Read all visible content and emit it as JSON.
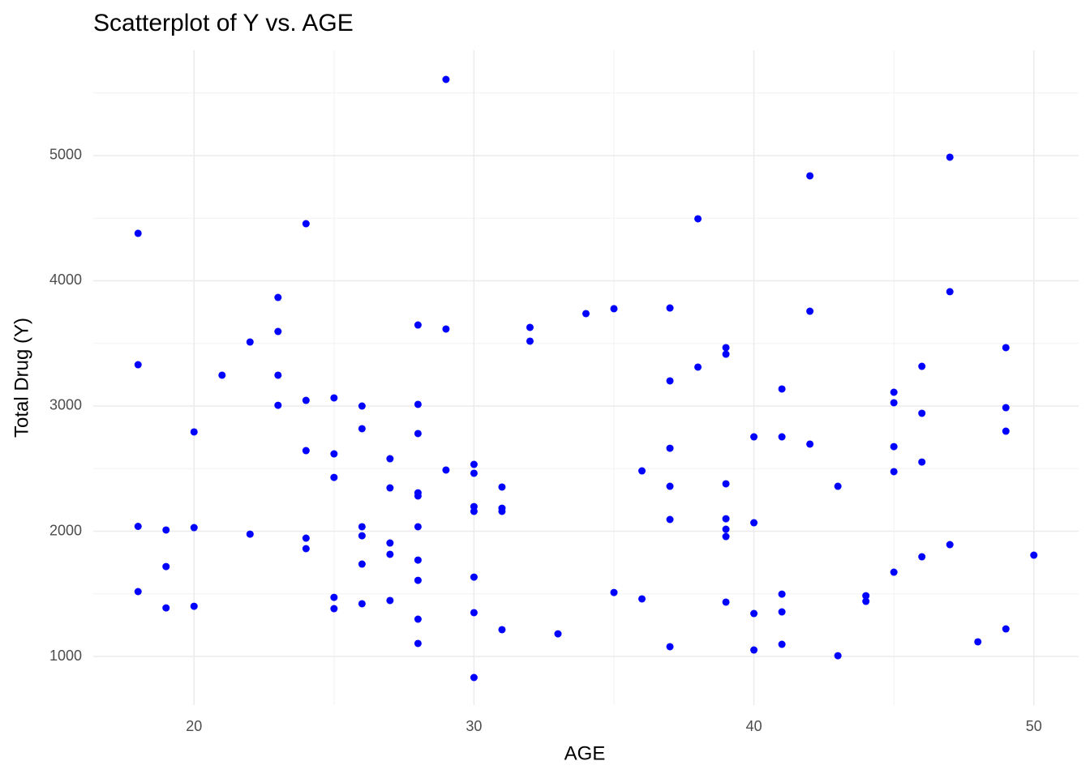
{
  "chart_data": {
    "type": "scatter",
    "title": "Scatterplot of Y vs. AGE",
    "x_label": "AGE",
    "y_label": "Total Drug (Y)",
    "color": "#0000ff",
    "grid": true,
    "xlim": [
      16.4,
      51.6
    ],
    "ylim": [
      612,
      5841
    ],
    "xticks": [
      20,
      30,
      40,
      50
    ],
    "yticks": [
      1000,
      2000,
      3000,
      4000,
      5000
    ],
    "minor_xticks": [
      25,
      35,
      45
    ],
    "minor_yticks": [
      1500,
      2500,
      3500,
      4500,
      5500
    ],
    "x": [
      18,
      18,
      18,
      18,
      19,
      19,
      19,
      20,
      20,
      20,
      21,
      22,
      22,
      23,
      23,
      23,
      23,
      24,
      24,
      24,
      24,
      24,
      25,
      25,
      25,
      25,
      25,
      26,
      26,
      26,
      26,
      26,
      26,
      27,
      27,
      27,
      27,
      27,
      28,
      28,
      28,
      28,
      28,
      28,
      28,
      28,
      28,
      28,
      29,
      29,
      29,
      30,
      30,
      30,
      30,
      30,
      30,
      30,
      31,
      31,
      31,
      31,
      32,
      32,
      33,
      34,
      35,
      35,
      36,
      36,
      37,
      37,
      37,
      37,
      37,
      37,
      38,
      38,
      39,
      39,
      39,
      39,
      39,
      39,
      39,
      40,
      40,
      40,
      40,
      41,
      41,
      41,
      41,
      41,
      42,
      42,
      42,
      43,
      43,
      44,
      44,
      45,
      45,
      45,
      45,
      45,
      46,
      46,
      46,
      46,
      47,
      47,
      47,
      48,
      49,
      49,
      49,
      49,
      50
    ],
    "values": [
      4379,
      3330,
      2039,
      1518,
      2010,
      1718,
      1388,
      2793,
      2029,
      1401,
      3246,
      3511,
      1977,
      3867,
      3595,
      3246,
      3006,
      4456,
      3045,
      2644,
      1945,
      1861,
      3065,
      2618,
      2430,
      1472,
      1382,
      3000,
      2819,
      2036,
      1964,
      1738,
      1421,
      2579,
      2346,
      1906,
      1816,
      1447,
      3647,
      3013,
      2780,
      2307,
      2282,
      2036,
      1770,
      1608,
      1298,
      1104,
      5608,
      3615,
      2489,
      2534,
      2463,
      2197,
      2159,
      1634,
      1350,
      832,
      2353,
      2184,
      2159,
      1214,
      3628,
      3518,
      1181,
      3738,
      3777,
      1511,
      2482,
      1460,
      3783,
      3201,
      2663,
      2359,
      2094,
      1078,
      4495,
      3311,
      3466,
      3414,
      2379,
      2100,
      2016,
      1958,
      1434,
      2754,
      2068,
      1343,
      1052,
      3136,
      2754,
      1498,
      1356,
      1097,
      4838,
      3757,
      2696,
      2359,
      1006,
      1485,
      1440,
      3110,
      3026,
      2676,
      2476,
      1673,
      3317,
      2942,
      2553,
      1796,
      4987,
      3913,
      1893,
      1117,
      3466,
      2987,
      2799,
      1220,
      1809
    ]
  }
}
